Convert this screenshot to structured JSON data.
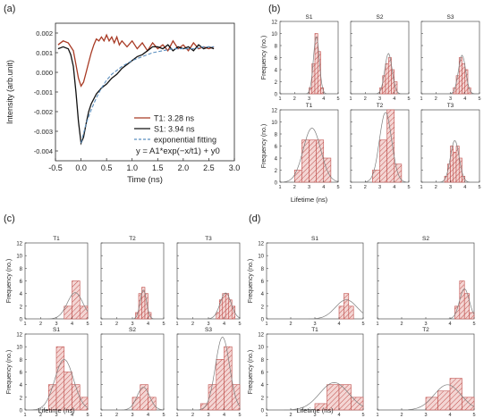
{
  "colors": {
    "t1_line": "#a83a24",
    "s1_line": "#111111",
    "fit_line": "#5b8fbf",
    "hist_edge": "#c0504d",
    "hist_fill": "#f4d6d4",
    "hatch": "#c0504d",
    "normal_curve": "#7d7d7d"
  },
  "panel_labels": {
    "a": "(a)",
    "b": "(b)",
    "c": "(c)",
    "d": "(d)"
  },
  "chart_data": [
    {
      "id": "a",
      "type": "line",
      "xlabel": "Time (ns)",
      "ylabel": "Intensity (arb.unit)",
      "xlim": [
        -0.5,
        3.0
      ],
      "ylim": [
        -0.0045,
        0.0025
      ],
      "xticks": [
        -0.5,
        0.0,
        0.5,
        1.0,
        1.5,
        2.0,
        2.5,
        3.0
      ],
      "xtick_labels": [
        "-0.5",
        "0.0",
        "0.5",
        "1.0",
        "1.5",
        "2.0",
        "2.5",
        "3.0"
      ],
      "yticks": [
        -0.004,
        -0.003,
        -0.002,
        -0.001,
        0.0,
        0.001,
        0.002
      ],
      "ytick_labels": [
        "-0.004",
        "-0.003",
        "-0.002",
        "-0.001",
        "0.000",
        "0.001",
        "0.002"
      ],
      "legend_position": "bottom-right",
      "equation": "y = A1*exp(−x/t1) + y0",
      "series": [
        {
          "name": "T1: 3.28 ns",
          "color_key": "t1_line",
          "style": "solid",
          "x": [
            -0.45,
            -0.35,
            -0.25,
            -0.15,
            -0.1,
            -0.05,
            0.0,
            0.05,
            0.1,
            0.15,
            0.2,
            0.25,
            0.3,
            0.35,
            0.4,
            0.45,
            0.5,
            0.55,
            0.6,
            0.65,
            0.7,
            0.75,
            0.8,
            0.9,
            1.0,
            1.1,
            1.2,
            1.3,
            1.4,
            1.5,
            1.6,
            1.7,
            1.8,
            1.9,
            2.0,
            2.1,
            2.2,
            2.3,
            2.4,
            2.5,
            2.6
          ],
          "y": [
            0.0014,
            0.0016,
            0.0015,
            0.0011,
            0.0004,
            -0.0003,
            -0.0007,
            -0.0005,
            0.0,
            0.0005,
            0.001,
            0.0014,
            0.0017,
            0.0016,
            0.0018,
            0.0016,
            0.0019,
            0.0016,
            0.0018,
            0.0015,
            0.0018,
            0.0014,
            0.0016,
            0.0013,
            0.0016,
            0.0012,
            0.0015,
            0.0011,
            0.0015,
            0.0012,
            0.0014,
            0.0011,
            0.0016,
            0.0012,
            0.0014,
            0.0011,
            0.0015,
            0.0012,
            0.0013,
            0.0012,
            0.0013
          ]
        },
        {
          "name": "S1: 3.94 ns",
          "color_key": "s1_line",
          "style": "solid",
          "x": [
            -0.45,
            -0.35,
            -0.25,
            -0.2,
            -0.15,
            -0.1,
            -0.05,
            0.0,
            0.05,
            0.1,
            0.15,
            0.2,
            0.3,
            0.4,
            0.5,
            0.6,
            0.7,
            0.8,
            0.9,
            1.0,
            1.1,
            1.2,
            1.3,
            1.4,
            1.5,
            1.6,
            1.7,
            1.8,
            1.9,
            2.0,
            2.1,
            2.2,
            2.3,
            2.4,
            2.5,
            2.6
          ],
          "y": [
            0.0012,
            0.0013,
            0.0012,
            0.0009,
            0.0003,
            -0.001,
            -0.0025,
            -0.0036,
            -0.0033,
            -0.0026,
            -0.002,
            -0.0016,
            -0.0011,
            -0.0008,
            -0.0006,
            -0.0003,
            -0.0001,
            0.0002,
            0.0004,
            0.0006,
            0.0008,
            0.0009,
            0.0011,
            0.0013,
            0.0013,
            0.0012,
            0.0014,
            0.0011,
            0.0013,
            0.0012,
            0.0013,
            0.0011,
            0.0014,
            0.0012,
            0.0013,
            0.0012
          ]
        },
        {
          "name": "exponential fitting",
          "color_key": "fit_line",
          "style": "dashed",
          "x": [
            0.0,
            0.1,
            0.2,
            0.3,
            0.4,
            0.5,
            0.6,
            0.8,
            1.0,
            1.2,
            1.4,
            1.6,
            1.8,
            2.0,
            2.2,
            2.4,
            2.6
          ],
          "y": [
            -0.0036,
            -0.0026,
            -0.0019,
            -0.0013,
            -0.0008,
            -0.0004,
            -0.0001,
            0.0003,
            0.0006,
            0.0008,
            0.001,
            0.0011,
            0.0012,
            0.0012,
            0.0012,
            0.0013,
            0.0013
          ]
        }
      ]
    },
    {
      "id": "b",
      "type": "bar",
      "ylabel": "Frequency (no.)",
      "xlabel": "Lifetime (ns)",
      "xlim": [
        1,
        5
      ],
      "xticks": [
        1,
        2,
        3,
        4,
        5
      ],
      "ylim": [
        0,
        12
      ],
      "yticks": [
        0,
        2,
        4,
        6,
        8,
        10,
        12
      ],
      "subplots": [
        {
          "title": "S1",
          "bins": [
            3.0,
            3.2,
            3.4,
            3.6,
            3.8,
            4.0
          ],
          "counts": [
            1,
            5,
            10,
            7,
            1
          ],
          "fit": {
            "mean": 3.5,
            "sd": 0.2,
            "area": 4.8
          }
        },
        {
          "title": "S2",
          "bins": [
            3.0,
            3.2,
            3.4,
            3.6,
            3.8,
            4.0,
            4.2
          ],
          "counts": [
            1,
            3,
            5,
            6,
            4,
            2
          ],
          "fit": {
            "mean": 3.6,
            "sd": 0.25,
            "area": 4.2
          }
        },
        {
          "title": "S3",
          "bins": [
            3.2,
            3.4,
            3.6,
            3.8,
            4.0,
            4.2,
            4.4
          ],
          "counts": [
            1,
            3,
            6,
            5,
            4,
            1
          ],
          "fit": {
            "mean": 3.8,
            "sd": 0.25,
            "area": 4.0
          }
        },
        {
          "title": "T1",
          "bins": [
            2.0,
            2.5,
            3.0,
            3.5,
            4.0,
            4.5
          ],
          "counts": [
            2,
            7,
            7,
            7,
            4
          ],
          "fit": {
            "mean": 3.2,
            "sd": 0.6,
            "area": 13.5
          }
        },
        {
          "title": "T2",
          "bins": [
            2.5,
            3.0,
            3.5,
            4.0,
            4.5
          ],
          "counts": [
            2,
            7,
            12,
            3
          ],
          "fit": {
            "mean": 3.4,
            "sd": 0.42,
            "area": 12.2
          }
        },
        {
          "title": "T3",
          "bins": [
            2.6,
            2.8,
            3.0,
            3.2,
            3.4,
            3.6,
            3.8,
            4.0
          ],
          "counts": [
            1,
            3,
            6,
            5,
            6,
            4,
            1
          ],
          "fit": {
            "mean": 3.3,
            "sd": 0.3,
            "area": 5.2
          }
        }
      ]
    },
    {
      "id": "c",
      "type": "bar",
      "ylabel": "Frequency (no.)",
      "xlabel": "Lifetime (ns)",
      "xlim": [
        1,
        5
      ],
      "xticks": [
        1,
        2,
        3,
        4,
        5
      ],
      "ylim": [
        0,
        12
      ],
      "yticks": [
        0,
        2,
        4,
        6,
        8,
        10,
        12
      ],
      "subplots": [
        {
          "title": "T1",
          "bins": [
            3.5,
            4.0,
            4.5,
            5.0
          ],
          "counts": [
            2,
            6,
            2
          ],
          "fit": {
            "mean": 4.2,
            "sd": 0.5,
            "area": 5.2
          }
        },
        {
          "title": "T2",
          "bins": [
            3.2,
            3.4,
            3.6,
            3.8,
            4.0,
            4.2
          ],
          "counts": [
            1,
            4,
            5,
            4,
            1
          ],
          "fit": {
            "mean": 3.7,
            "sd": 0.2,
            "area": 2.3
          }
        },
        {
          "title": "T3",
          "bins": [
            3.5,
            3.7,
            3.9,
            4.1,
            4.3,
            4.5,
            4.7
          ],
          "counts": [
            1,
            3,
            4,
            4,
            3,
            2
          ],
          "fit": {
            "mean": 4.1,
            "sd": 0.35,
            "area": 3.6
          }
        },
        {
          "title": "S1",
          "bins": [
            2.5,
            3.0,
            3.5,
            4.0,
            4.5,
            5.0
          ],
          "counts": [
            4,
            10,
            6,
            4,
            2
          ],
          "fit": {
            "mean": 3.5,
            "sd": 0.6,
            "area": 12.0
          }
        },
        {
          "title": "S2",
          "bins": [
            3.0,
            3.5,
            4.0,
            4.5
          ],
          "counts": [
            2,
            4,
            2
          ],
          "fit": {
            "mean": 3.7,
            "sd": 0.4,
            "area": 3.6
          }
        },
        {
          "title": "S3",
          "bins": [
            2.5,
            3.0,
            3.5,
            4.0,
            4.5,
            5.0
          ],
          "counts": [
            1,
            4,
            8,
            10,
            4
          ],
          "fit": {
            "mean": 3.9,
            "sd": 0.45,
            "area": 13.0
          }
        }
      ]
    },
    {
      "id": "d",
      "type": "bar",
      "ylabel": "Frequency (no.)",
      "xlabel": "Lifetime (ns)",
      "xlim": [
        1,
        5
      ],
      "xticks": [
        1,
        2,
        3,
        4,
        5
      ],
      "ylim": [
        0,
        12
      ],
      "yticks": [
        0,
        2,
        4,
        6,
        8,
        10,
        12
      ],
      "subplots": [
        {
          "title": "S1",
          "bins": [
            4.0,
            4.2,
            4.4,
            4.6
          ],
          "counts": [
            2,
            4,
            2
          ],
          "fit": {
            "mean": 4.3,
            "sd": 0.45,
            "area": 3.4
          }
        },
        {
          "title": "S2",
          "bins": [
            4.2,
            4.4,
            4.6,
            4.8,
            5.0
          ],
          "counts": [
            2,
            6,
            4,
            1
          ],
          "fit": {
            "mean": 4.6,
            "sd": 0.2,
            "area": 2.4
          }
        },
        {
          "title": "T1",
          "bins": [
            3.0,
            3.5,
            4.0,
            4.5,
            5.0
          ],
          "counts": [
            1,
            4,
            4,
            2
          ],
          "fit": {
            "mean": 3.8,
            "sd": 0.6,
            "area": 6.5
          }
        },
        {
          "title": "T2",
          "bins": [
            3.0,
            3.5,
            4.0,
            4.5,
            5.0
          ],
          "counts": [
            2,
            3,
            5,
            2
          ],
          "fit": {
            "mean": 3.9,
            "sd": 0.55,
            "area": 5.5
          }
        }
      ]
    }
  ]
}
